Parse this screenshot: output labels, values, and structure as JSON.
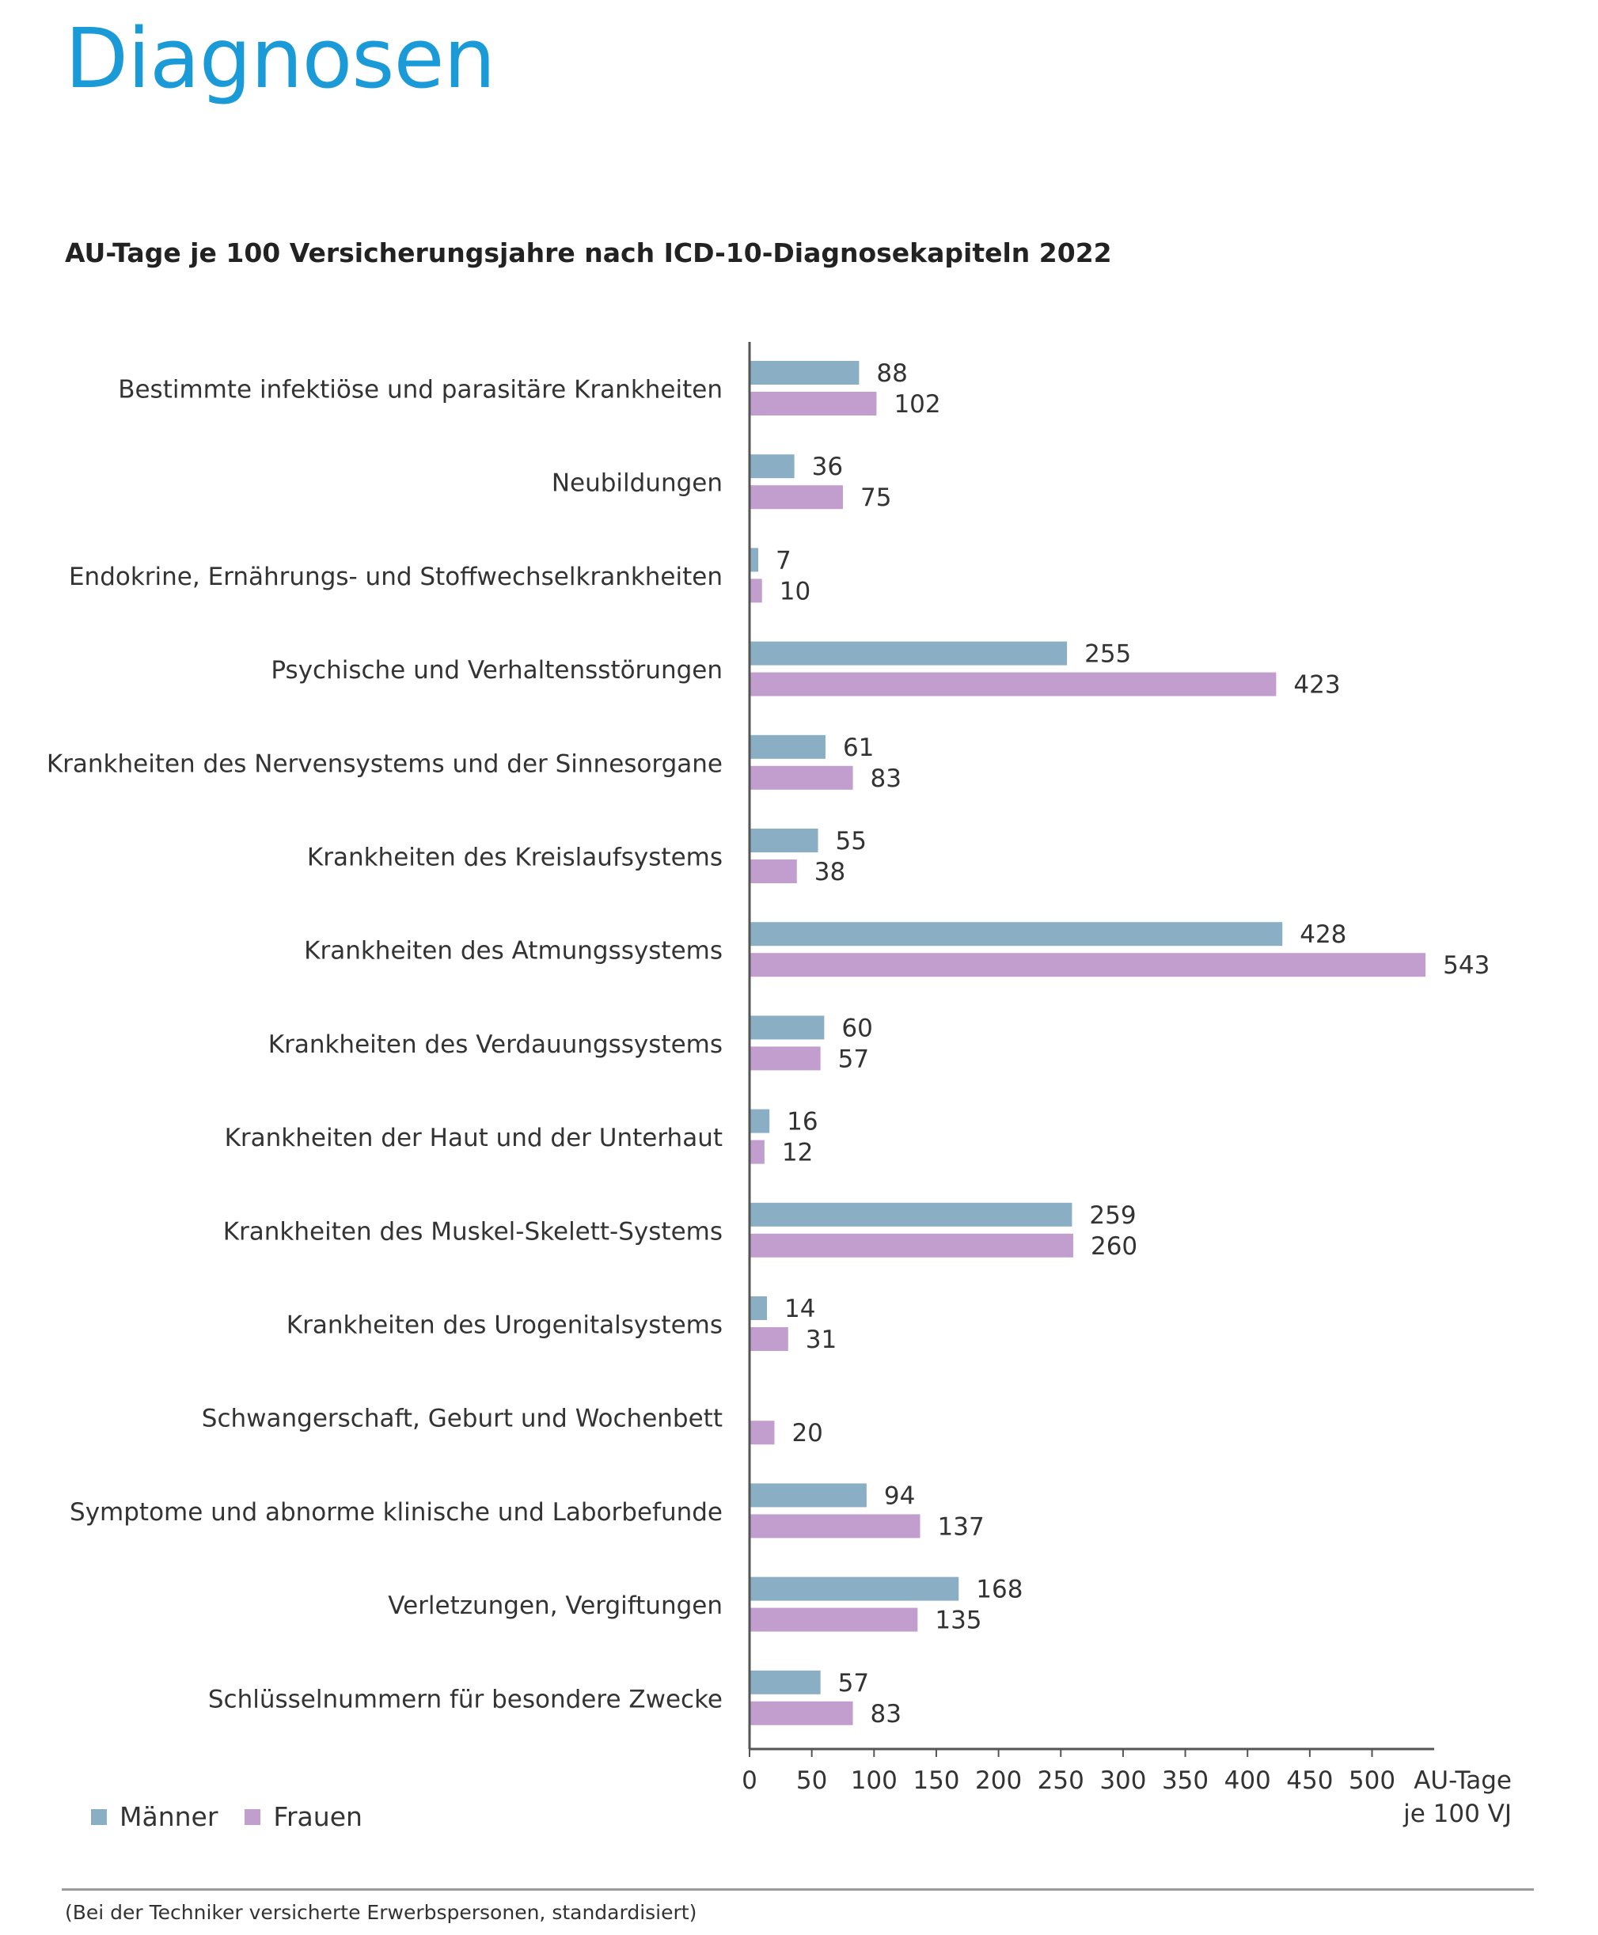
{
  "header": {
    "title": "Diagnosen",
    "title_color": "#1a9bd7"
  },
  "chart_data": {
    "type": "bar",
    "orientation": "horizontal",
    "title": "AU-Tage je 100 Versicherungsjahre nach ICD-10-Diagnosekapiteln 2022",
    "xlabel": "AU-Tage je 100 VJ",
    "xlim": [
      0,
      550
    ],
    "xticks": [
      0,
      50,
      100,
      150,
      200,
      250,
      300,
      350,
      400,
      450,
      500
    ],
    "grid": false,
    "legend_position": "bottom-left",
    "categories": [
      "Bestimmte infektiöse und parasitäre Krankheiten",
      "Neubildungen",
      "Endokrine, Ernährungs- und Stoffwechselkrankheiten",
      "Psychische und Verhaltensstörungen",
      "Krankheiten des Nervensystems und der Sinnesorgane",
      "Krankheiten des Kreislaufsystems",
      "Krankheiten des Atmungssystems",
      "Krankheiten des Verdauungssystems",
      "Krankheiten der Haut und der Unterhaut",
      "Krankheiten des Muskel-Skelett-Systems",
      "Krankheiten des Urogenitalsystems",
      "Schwangerschaft, Geburt und Wochenbett",
      "Symptome und abnorme klinische und Laborbefunde",
      "Verletzungen, Vergiftungen",
      "Schlüsselnummern für besondere Zwecke"
    ],
    "series": [
      {
        "name": "Männer",
        "color": "#8aafc4",
        "values": [
          88,
          36,
          7,
          255,
          61,
          55,
          428,
          60,
          16,
          259,
          14,
          null,
          94,
          168,
          57
        ]
      },
      {
        "name": "Frauen",
        "color": "#c29ecf",
        "values": [
          102,
          75,
          10,
          423,
          83,
          38,
          543,
          57,
          12,
          260,
          31,
          20,
          137,
          135,
          83
        ]
      }
    ]
  },
  "footnote": "(Bei der Techniker versicherte Erwerbspersonen, standardisiert)"
}
